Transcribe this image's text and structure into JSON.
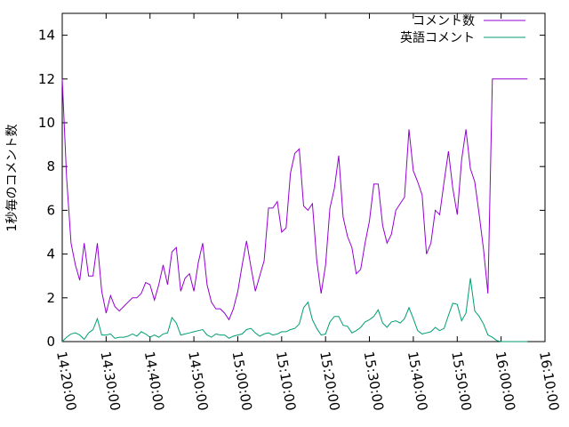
{
  "chart_data": {
    "type": "line",
    "title": "",
    "xlabel": "",
    "ylabel": "1秒毎のコメント数",
    "xlim": [
      "14:20:00",
      "16:10:00"
    ],
    "ylim": [
      0,
      15
    ],
    "x_ticks": [
      "14:20:00",
      "14:30:00",
      "14:40:00",
      "14:50:00",
      "15:00:00",
      "15:10:00",
      "15:20:00",
      "15:30:00",
      "15:40:00",
      "15:50:00",
      "16:00:00",
      "16:10:00"
    ],
    "y_ticks": [
      0,
      2,
      4,
      6,
      8,
      10,
      12,
      14
    ],
    "grid": false,
    "legend_position": "top-right",
    "series": [
      {
        "name": "コメント数",
        "color": "#9400d3",
        "x": [
          "14:20:00",
          "14:21:00",
          "14:22:00",
          "14:23:00",
          "14:24:00",
          "14:25:00",
          "14:26:00",
          "14:27:00",
          "14:28:00",
          "14:29:00",
          "14:30:00",
          "14:31:00",
          "14:32:00",
          "14:33:00",
          "14:34:00",
          "14:35:00",
          "14:36:00",
          "14:37:00",
          "14:38:00",
          "14:39:00",
          "14:40:00",
          "14:41:00",
          "14:42:00",
          "14:43:00",
          "14:44:00",
          "14:45:00",
          "14:46:00",
          "14:47:00",
          "14:48:00",
          "14:49:00",
          "14:50:00",
          "14:51:00",
          "14:52:00",
          "14:53:00",
          "14:54:00",
          "14:55:00",
          "14:56:00",
          "14:57:00",
          "14:58:00",
          "14:59:00",
          "15:00:00",
          "15:01:00",
          "15:02:00",
          "15:03:00",
          "15:04:00",
          "15:05:00",
          "15:06:00",
          "15:07:00",
          "15:08:00",
          "15:09:00",
          "15:10:00",
          "15:11:00",
          "15:12:00",
          "15:13:00",
          "15:14:00",
          "15:15:00",
          "15:16:00",
          "15:17:00",
          "15:18:00",
          "15:19:00",
          "15:20:00",
          "15:21:00",
          "15:22:00",
          "15:23:00",
          "15:24:00",
          "15:25:00",
          "15:26:00",
          "15:27:00",
          "15:28:00",
          "15:29:00",
          "15:30:00",
          "15:31:00",
          "15:32:00",
          "15:33:00",
          "15:34:00",
          "15:35:00",
          "15:36:00",
          "15:37:00",
          "15:38:00",
          "15:39:00",
          "15:40:00",
          "15:41:00",
          "15:42:00",
          "15:43:00",
          "15:44:00",
          "15:45:00",
          "15:46:00",
          "15:47:00",
          "15:48:00",
          "15:49:00",
          "15:50:00",
          "15:51:00",
          "15:52:00",
          "15:53:00",
          "15:54:00",
          "15:55:00",
          "15:56:00",
          "15:57:00",
          "15:58:00",
          "15:59:00",
          "16:00:00",
          "16:01:00",
          "16:02:00",
          "16:03:00",
          "16:04:00",
          "16:05:00",
          "16:06:00"
        ],
        "values": [
          12.0,
          7.5,
          4.5,
          3.5,
          2.8,
          4.5,
          3.0,
          3.0,
          4.5,
          2.3,
          1.3,
          2.1,
          1.6,
          1.4,
          1.6,
          1.8,
          2.0,
          2.0,
          2.2,
          2.7,
          2.6,
          1.9,
          2.6,
          3.5,
          2.6,
          4.1,
          4.3,
          2.3,
          2.9,
          3.1,
          2.3,
          3.6,
          4.5,
          2.6,
          1.8,
          1.5,
          1.5,
          1.3,
          1.0,
          1.5,
          2.3,
          3.5,
          4.6,
          3.4,
          2.3,
          3.0,
          3.7,
          6.1,
          6.1,
          6.4,
          5.0,
          5.2,
          7.7,
          8.6,
          8.8,
          6.2,
          6.0,
          6.3,
          3.7,
          2.2,
          3.5,
          6.1,
          7.0,
          8.5,
          5.7,
          4.8,
          4.3,
          3.1,
          3.3,
          4.5,
          5.5,
          7.2,
          7.2,
          5.3,
          4.5,
          4.9,
          6.0,
          6.3,
          6.6,
          9.7,
          7.8,
          7.3,
          6.7,
          4.0,
          4.5,
          6.0,
          5.8,
          7.3,
          8.7,
          7.0,
          5.8,
          8.3,
          9.7,
          7.9,
          7.3,
          5.8,
          4.2,
          2.2,
          12.0,
          12.0,
          12.0,
          12.0,
          12.0,
          12.0,
          12.0,
          12.0,
          12.0
        ]
      },
      {
        "name": "英語コメント",
        "color": "#009e73",
        "x": [
          "14:20:00",
          "14:21:00",
          "14:22:00",
          "14:23:00",
          "14:24:00",
          "14:25:00",
          "14:26:00",
          "14:27:00",
          "14:28:00",
          "14:29:00",
          "14:30:00",
          "14:31:00",
          "14:32:00",
          "14:33:00",
          "14:34:00",
          "14:35:00",
          "14:36:00",
          "14:37:00",
          "14:38:00",
          "14:39:00",
          "14:40:00",
          "14:41:00",
          "14:42:00",
          "14:43:00",
          "14:44:00",
          "14:45:00",
          "14:46:00",
          "14:47:00",
          "14:48:00",
          "14:49:00",
          "14:50:00",
          "14:51:00",
          "14:52:00",
          "14:53:00",
          "14:54:00",
          "14:55:00",
          "14:56:00",
          "14:57:00",
          "14:58:00",
          "14:59:00",
          "15:00:00",
          "15:01:00",
          "15:02:00",
          "15:03:00",
          "15:04:00",
          "15:05:00",
          "15:06:00",
          "15:07:00",
          "15:08:00",
          "15:09:00",
          "15:10:00",
          "15:11:00",
          "15:12:00",
          "15:13:00",
          "15:14:00",
          "15:15:00",
          "15:16:00",
          "15:17:00",
          "15:18:00",
          "15:19:00",
          "15:20:00",
          "15:21:00",
          "15:22:00",
          "15:23:00",
          "15:24:00",
          "15:25:00",
          "15:26:00",
          "15:27:00",
          "15:28:00",
          "15:29:00",
          "15:30:00",
          "15:31:00",
          "15:32:00",
          "15:33:00",
          "15:34:00",
          "15:35:00",
          "15:36:00",
          "15:37:00",
          "15:38:00",
          "15:39:00",
          "15:40:00",
          "15:41:00",
          "15:42:00",
          "15:43:00",
          "15:44:00",
          "15:45:00",
          "15:46:00",
          "15:47:00",
          "15:48:00",
          "15:49:00",
          "15:50:00",
          "15:51:00",
          "15:52:00",
          "15:53:00",
          "15:54:00",
          "15:55:00",
          "15:56:00",
          "15:57:00",
          "15:58:00",
          "15:59:00",
          "16:00:00",
          "16:01:00",
          "16:02:00",
          "16:03:00",
          "16:04:00",
          "16:05:00",
          "16:06:00"
        ],
        "values": [
          0.0,
          0.2,
          0.35,
          0.4,
          0.3,
          0.1,
          0.4,
          0.55,
          1.05,
          0.3,
          0.3,
          0.35,
          0.15,
          0.2,
          0.2,
          0.25,
          0.35,
          0.25,
          0.45,
          0.35,
          0.2,
          0.3,
          0.2,
          0.35,
          0.4,
          1.1,
          0.85,
          0.3,
          0.35,
          0.4,
          0.45,
          0.5,
          0.55,
          0.3,
          0.2,
          0.35,
          0.3,
          0.3,
          0.15,
          0.25,
          0.3,
          0.35,
          0.55,
          0.6,
          0.4,
          0.25,
          0.35,
          0.4,
          0.3,
          0.35,
          0.45,
          0.45,
          0.55,
          0.6,
          0.8,
          1.55,
          1.8,
          1.0,
          0.6,
          0.3,
          0.35,
          0.9,
          1.15,
          1.15,
          0.75,
          0.7,
          0.4,
          0.5,
          0.65,
          0.9,
          1.0,
          1.15,
          1.45,
          0.85,
          0.65,
          0.9,
          0.95,
          0.85,
          1.05,
          1.55,
          1.05,
          0.5,
          0.35,
          0.4,
          0.45,
          0.65,
          0.5,
          0.6,
          1.2,
          1.75,
          1.7,
          0.95,
          1.3,
          2.9,
          1.4,
          1.15,
          0.8,
          0.3,
          0.2,
          0.05,
          0.0,
          0.0,
          0.0,
          0.0,
          0.0,
          0.0,
          0.0
        ]
      }
    ]
  }
}
